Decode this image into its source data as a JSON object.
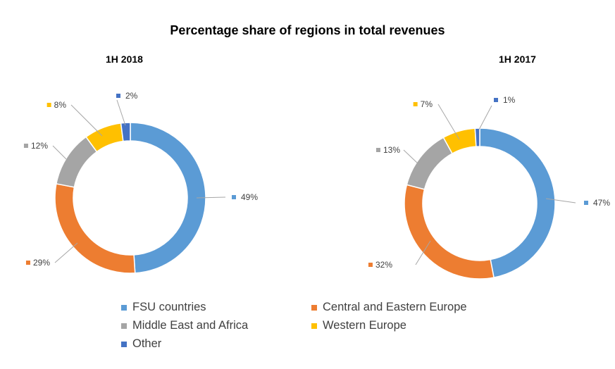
{
  "title": "Percentage share of regions in total revenues",
  "chart_data": [
    {
      "type": "pie",
      "subtitle": "1H 2018",
      "categories": [
        "FSU countries",
        "Central and Eastern Europe",
        "Middle East and Africa",
        "Western Europe",
        "Other"
      ],
      "values": [
        49,
        29,
        12,
        8,
        2
      ],
      "labels": [
        "49%",
        "29%",
        "12%",
        "8%",
        "2%"
      ]
    },
    {
      "type": "pie",
      "subtitle": "1H 2017",
      "categories": [
        "FSU countries",
        "Central and Eastern Europe",
        "Middle East and Africa",
        "Western Europe",
        "Other"
      ],
      "values": [
        47,
        32,
        13,
        7,
        1
      ],
      "labels": [
        "47%",
        "32%",
        "13%",
        "7%",
        "1%"
      ]
    }
  ],
  "colors": [
    "#5B9BD5",
    "#ED7D31",
    "#A5A5A5",
    "#FFC000",
    "#4472C4"
  ],
  "legend": [
    {
      "label": "FSU countries"
    },
    {
      "label": "Central and Eastern Europe"
    },
    {
      "label": "Middle East and Africa"
    },
    {
      "label": "Western Europe"
    },
    {
      "label": "Other"
    }
  ]
}
